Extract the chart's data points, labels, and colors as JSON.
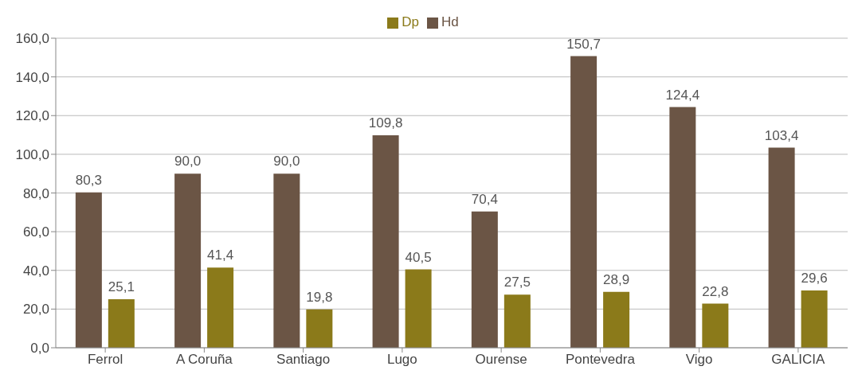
{
  "chart_data": {
    "type": "bar",
    "categories": [
      "Ferrol",
      "A Coruña",
      "Santiago",
      "Lugo",
      "Ourense",
      "Pontevedra",
      "Vigo",
      "GALICIA"
    ],
    "series": [
      {
        "name": "Hd",
        "color": "#6b5545",
        "values": [
          80.3,
          90.0,
          90.0,
          109.8,
          70.4,
          150.7,
          124.4,
          103.4
        ],
        "value_labels": [
          "80,3",
          "90,0",
          "90,0",
          "109,8",
          "70,4",
          "150,7",
          "124,4",
          "103,4"
        ]
      },
      {
        "name": "Dp",
        "color": "#8b7a1a",
        "values": [
          25.1,
          41.4,
          19.8,
          40.5,
          27.5,
          28.9,
          22.8,
          29.6
        ],
        "value_labels": [
          "25,1",
          "41,4",
          "19,8",
          "40,5",
          "27,5",
          "28,9",
          "22,8",
          "29,6"
        ]
      }
    ],
    "ylim": [
      0,
      160
    ],
    "yticks": [
      {
        "value": 0,
        "label": "0,0"
      },
      {
        "value": 20,
        "label": "20,0"
      },
      {
        "value": 40,
        "label": "40,0"
      },
      {
        "value": 60,
        "label": "60,0"
      },
      {
        "value": 80,
        "label": "80,0"
      },
      {
        "value": 100,
        "label": "100,0"
      },
      {
        "value": 120,
        "label": "120,0"
      },
      {
        "value": 140,
        "label": "140,0"
      },
      {
        "value": 160,
        "label": "160,0"
      }
    ],
    "grid": "y",
    "legend": "top"
  }
}
